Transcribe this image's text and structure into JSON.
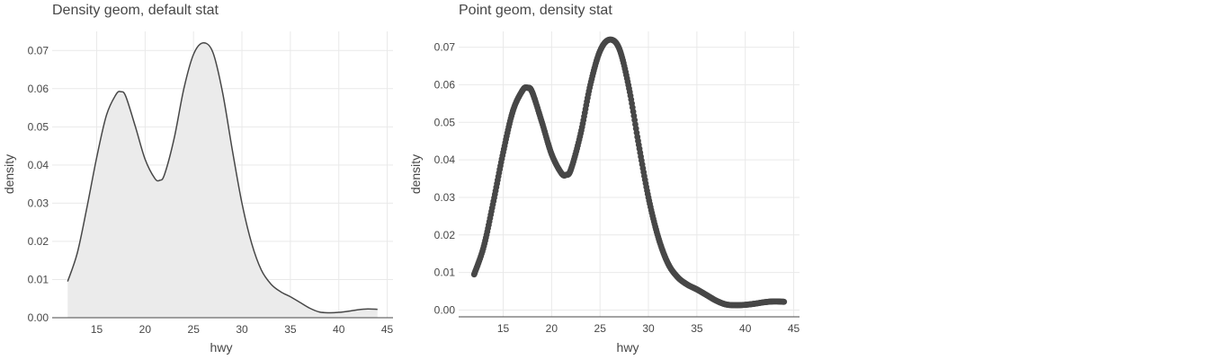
{
  "colors": {
    "line": "#474747",
    "fill": "#ebebeb",
    "grid": "#e9e9e9"
  },
  "chart_data": [
    {
      "type": "area",
      "title": "Density geom, default stat",
      "xlabel": "hwy",
      "ylabel": "density",
      "xlim": [
        10.4,
        45.6
      ],
      "ylim": [
        0,
        0.075
      ],
      "xticks": [
        "15",
        "20",
        "25",
        "30",
        "35",
        "40",
        "45"
      ],
      "yticks": [
        "0.00",
        "0.01",
        "0.02",
        "0.03",
        "0.04",
        "0.05",
        "0.06",
        "0.07"
      ],
      "x": [
        12,
        13,
        14,
        15,
        16,
        17,
        17.5,
        18,
        19,
        20,
        21,
        21.5,
        22,
        23,
        24,
        25,
        26,
        27,
        28,
        29,
        30,
        31,
        32,
        33,
        34,
        35,
        36,
        37,
        38,
        39,
        40,
        41,
        42,
        43,
        44
      ],
      "y": [
        0.0095,
        0.017,
        0.029,
        0.042,
        0.053,
        0.0585,
        0.0592,
        0.058,
        0.05,
        0.0415,
        0.0365,
        0.036,
        0.0375,
        0.047,
        0.06,
        0.069,
        0.072,
        0.0695,
        0.059,
        0.044,
        0.03,
        0.0195,
        0.0125,
        0.0088,
        0.0068,
        0.0055,
        0.004,
        0.0025,
        0.0015,
        0.0013,
        0.0014,
        0.0017,
        0.0021,
        0.0023,
        0.0022
      ]
    },
    {
      "type": "scatter",
      "title": "Point geom, density stat",
      "xlabel": "hwy",
      "ylabel": "density",
      "xlim": [
        10.4,
        45.6
      ],
      "ylim": [
        -0.0018,
        0.0742
      ],
      "xticks": [
        "15",
        "20",
        "25",
        "30",
        "35",
        "40",
        "45"
      ],
      "yticks": [
        "0.00",
        "0.01",
        "0.02",
        "0.03",
        "0.04",
        "0.05",
        "0.06",
        "0.07"
      ],
      "x": [
        12,
        13,
        14,
        15,
        16,
        17,
        17.5,
        18,
        19,
        20,
        21,
        21.5,
        22,
        23,
        24,
        25,
        26,
        27,
        28,
        29,
        30,
        31,
        32,
        33,
        34,
        35,
        36,
        37,
        38,
        39,
        40,
        41,
        42,
        43,
        44
      ],
      "y": [
        0.0095,
        0.017,
        0.029,
        0.042,
        0.053,
        0.0585,
        0.0592,
        0.058,
        0.05,
        0.0415,
        0.0365,
        0.036,
        0.0375,
        0.047,
        0.06,
        0.069,
        0.072,
        0.0695,
        0.059,
        0.044,
        0.03,
        0.0195,
        0.0125,
        0.0088,
        0.0068,
        0.0055,
        0.004,
        0.0025,
        0.0015,
        0.0013,
        0.0014,
        0.0017,
        0.0021,
        0.0023,
        0.0022
      ]
    }
  ]
}
